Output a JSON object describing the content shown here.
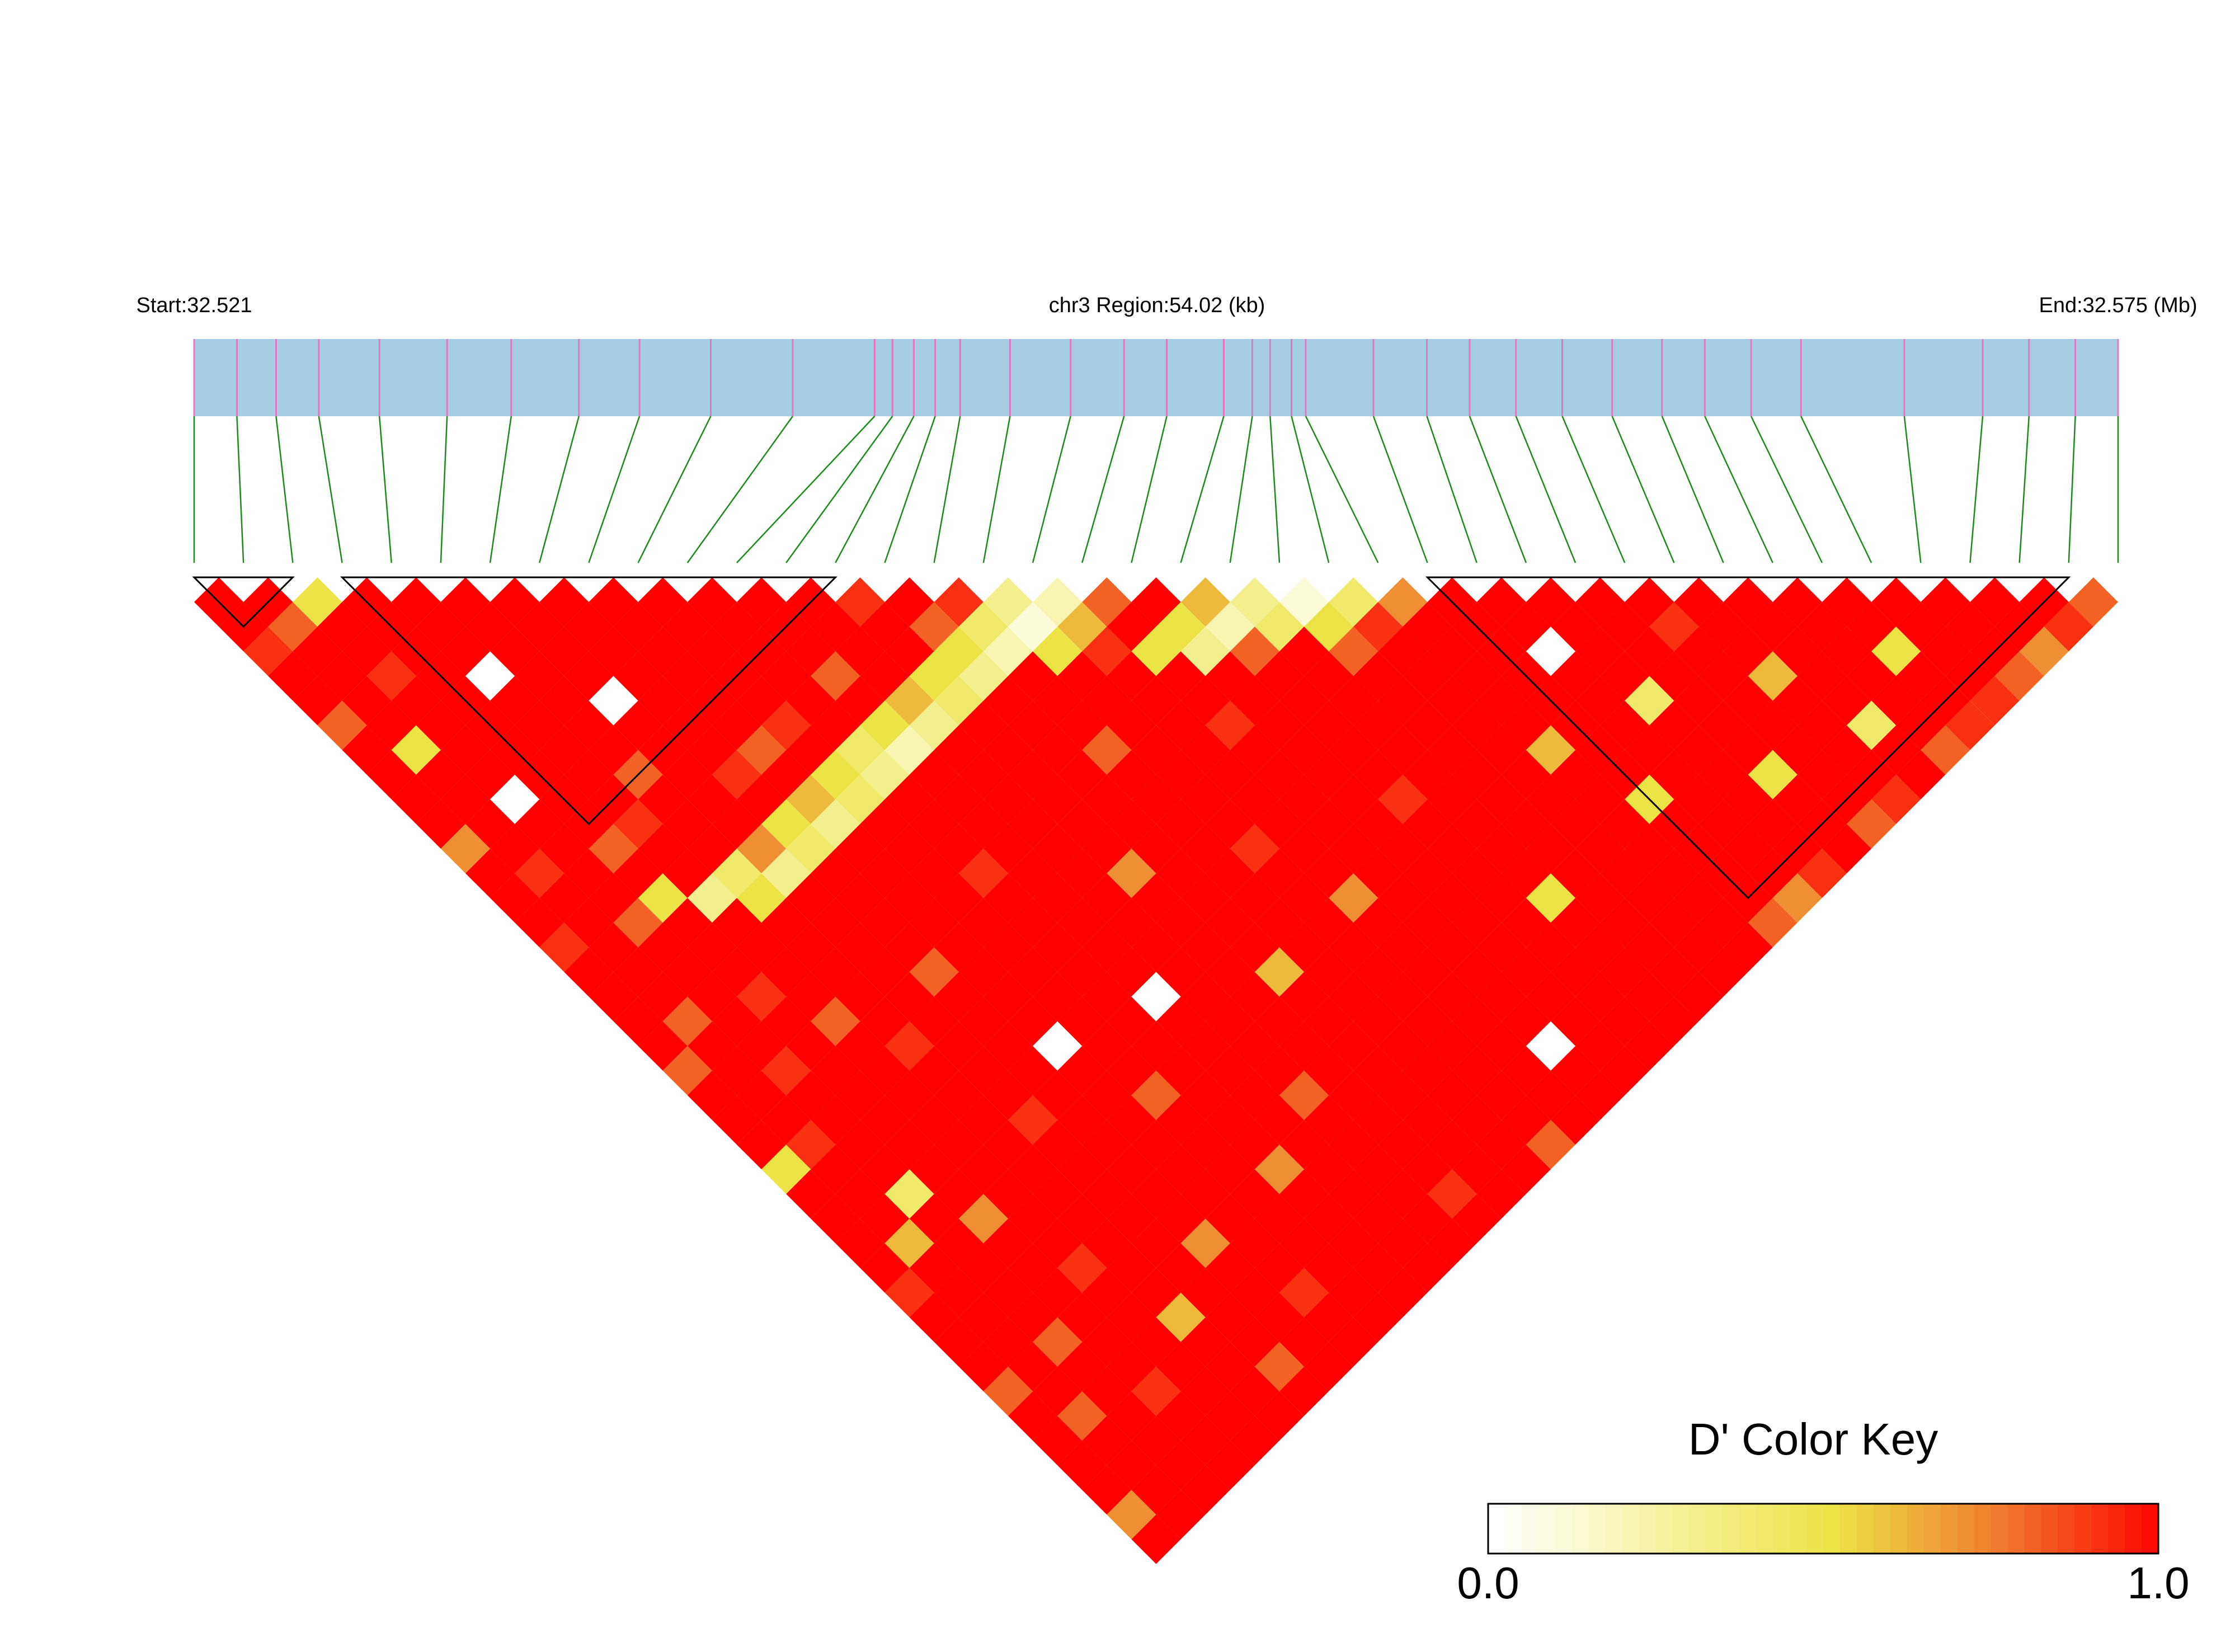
{
  "chart_data": {
    "type": "ld_heatmap",
    "start_label": "Start:32.521",
    "region_label": "chr3 Region:54.02 (kb)",
    "end_label": "End:32.575 (Mb)",
    "key_title": "D' Color Key",
    "xlim": [
      32.521,
      32.575
    ],
    "snp_positions": [
      32.521,
      32.5222,
      32.5233,
      32.5245,
      32.5262,
      32.5281,
      32.5299,
      32.5318,
      32.5335,
      32.5355,
      32.5378,
      32.5401,
      32.5406,
      32.5412,
      32.5418,
      32.5425,
      32.5439,
      32.5456,
      32.5471,
      32.5483,
      32.5499,
      32.5507,
      32.5512,
      32.5518,
      32.5522,
      32.5541,
      32.5556,
      32.5568,
      32.5581,
      32.5594,
      32.5608,
      32.5622,
      32.5634,
      32.5647,
      32.5661,
      32.569,
      32.5712,
      32.5725,
      32.5738,
      32.575
    ],
    "blocks": [
      [
        0,
        2
      ],
      [
        3,
        13
      ],
      [
        25,
        38
      ]
    ],
    "ld_matrix": [
      [
        1,
        1,
        0.9,
        1,
        1,
        0.8,
        1,
        1,
        1,
        1,
        0.7,
        1,
        1,
        1,
        0.9,
        1,
        1,
        1,
        1,
        0.8,
        1,
        1,
        1,
        0.5,
        1,
        1,
        1,
        1,
        0.9,
        1,
        1,
        1,
        0.8,
        1,
        1,
        1,
        1,
        0.7,
        1
      ],
      [
        1,
        0.8,
        1,
        1,
        1,
        1,
        0.5,
        1,
        1,
        1,
        1,
        0.9,
        1,
        1,
        1,
        1,
        1,
        0.8,
        1,
        1,
        1,
        1,
        0.9,
        1,
        1,
        1,
        0.6,
        1,
        1,
        1,
        1,
        1,
        1,
        0.8,
        1,
        1,
        1,
        1
      ],
      [
        0.5,
        1,
        1,
        0.9,
        1,
        1,
        1,
        1,
        0,
        1,
        1,
        1,
        1,
        0.8,
        1,
        1,
        1,
        1,
        1,
        0.9,
        1,
        1,
        1,
        1,
        0.4,
        1,
        1,
        1,
        1,
        1,
        0.8,
        1,
        1,
        1,
        1,
        1,
        1
      ],
      [
        1,
        1,
        1,
        1,
        1,
        1,
        1,
        1,
        1,
        1,
        0.8,
        1,
        0.5,
        1,
        1,
        1,
        0.9,
        1,
        1,
        1,
        1,
        1,
        1,
        1,
        1,
        0.7,
        1,
        1,
        1,
        1,
        1,
        1,
        0.9,
        1,
        1,
        1
      ],
      [
        1,
        1,
        1,
        0,
        1,
        1,
        1,
        1,
        1,
        0.9,
        1,
        1,
        0.3,
        1,
        1,
        1,
        1,
        0.8,
        1,
        1,
        1,
        1,
        1,
        1,
        1,
        1,
        1,
        0.9,
        1,
        1,
        1,
        1,
        1,
        1,
        1
      ],
      [
        1,
        1,
        1,
        1,
        1,
        1,
        1,
        0.8,
        1,
        1,
        1,
        0.4,
        0.5,
        1,
        1,
        1,
        1,
        1,
        0.9,
        1,
        1,
        1,
        1,
        1,
        1,
        1,
        1,
        1,
        1,
        0.6,
        1,
        1,
        1,
        1
      ],
      [
        1,
        1,
        1,
        1,
        0,
        1,
        1,
        1,
        1,
        1,
        0.7,
        0.3,
        1,
        1,
        1,
        1,
        1,
        1,
        1,
        1,
        1,
        0.9,
        1,
        1,
        1,
        1,
        1,
        1,
        1,
        1,
        1,
        0.8,
        1
      ],
      [
        1,
        1,
        1,
        1,
        1,
        1,
        1,
        0.9,
        1,
        0.5,
        0.4,
        1,
        1,
        1,
        1,
        0.8,
        1,
        1,
        1,
        1,
        1,
        1,
        1,
        1,
        1,
        1,
        0.7,
        1,
        1,
        1,
        1,
        1
      ],
      [
        1,
        1,
        1,
        1,
        1,
        1,
        0.8,
        1,
        0.6,
        0.3,
        1,
        1,
        1,
        1,
        1,
        1,
        1,
        1,
        0,
        1,
        1,
        1,
        1,
        1,
        1,
        1,
        1,
        1,
        0.9,
        1,
        1
      ],
      [
        1,
        1,
        1,
        1,
        1,
        0.9,
        1,
        0.5,
        0.4,
        1,
        1,
        1,
        1,
        1,
        1,
        1,
        1,
        1,
        1,
        1,
        0.8,
        1,
        1,
        1,
        1,
        1,
        1,
        1,
        1,
        1
      ],
      [
        1,
        1,
        1,
        1,
        1,
        1,
        0.4,
        0.3,
        1,
        1,
        1,
        0.9,
        1,
        1,
        1,
        1,
        1,
        1,
        1,
        1,
        1,
        1,
        1,
        0.7,
        1,
        1,
        1,
        1,
        1
      ],
      [
        1,
        1,
        1,
        0.8,
        1,
        0.5,
        0.2,
        1,
        1,
        1,
        1,
        1,
        1,
        1,
        1,
        1,
        0,
        1,
        1,
        1,
        1,
        1,
        1,
        1,
        1,
        1,
        1,
        1
      ],
      [
        1,
        1,
        1,
        1,
        0.6,
        0.3,
        1,
        1,
        1,
        1,
        1,
        1,
        1,
        1,
        1,
        1,
        1,
        1,
        1,
        1,
        0.8,
        1,
        1,
        1,
        1,
        1,
        1
      ],
      [
        0.9,
        1,
        1,
        0.5,
        0.4,
        1,
        1,
        1,
        1,
        1,
        1,
        0.7,
        1,
        1,
        1,
        1,
        1,
        1,
        1,
        1,
        1,
        1,
        1,
        1,
        0.9,
        1
      ],
      [
        1,
        0.8,
        0.5,
        0.3,
        1,
        1,
        1,
        1,
        1,
        1,
        1,
        1,
        1,
        1,
        1,
        0.6,
        1,
        1,
        1,
        1,
        1,
        1,
        1,
        1,
        1
      ],
      [
        0.9,
        0.4,
        0.2,
        1,
        1,
        1,
        0.8,
        1,
        1,
        1,
        1,
        1,
        1,
        1,
        1,
        1,
        1,
        1,
        1,
        1,
        1,
        1,
        1,
        1
      ],
      [
        0.3,
        0.1,
        0.5,
        1,
        1,
        1,
        1,
        1,
        1,
        1,
        0.9,
        1,
        1,
        1,
        1,
        1,
        1,
        1,
        1,
        1,
        1,
        1,
        0.8
      ],
      [
        0.2,
        0.6,
        0.9,
        1,
        1,
        1,
        1,
        1,
        1,
        1,
        1,
        1,
        0.7,
        1,
        1,
        1,
        1,
        1,
        1,
        1,
        1,
        1
      ],
      [
        0.8,
        1,
        0.5,
        1,
        1,
        0.9,
        1,
        1,
        1,
        1,
        1,
        1,
        1,
        1,
        1,
        1,
        1,
        1,
        0,
        1,
        1
      ],
      [
        1,
        0.5,
        0.3,
        1,
        1,
        1,
        1,
        1,
        1,
        1,
        1,
        1,
        1,
        1,
        1,
        1,
        1,
        1,
        1,
        1
      ],
      [
        0.6,
        0.2,
        0.8,
        1,
        1,
        1,
        1,
        1,
        0.9,
        1,
        1,
        1,
        1,
        1,
        1,
        1,
        1,
        1,
        1
      ],
      [
        0.3,
        0.4,
        1,
        1,
        1,
        1,
        1,
        1,
        1,
        1,
        1,
        1,
        0.5,
        1,
        1,
        1,
        1,
        1
      ],
      [
        0.1,
        0.5,
        0.8,
        1,
        1,
        1,
        1,
        1,
        1,
        1,
        1,
        1,
        1,
        1,
        1,
        1,
        1
      ],
      [
        0.4,
        0.9,
        1,
        1,
        1,
        1,
        1,
        1,
        1,
        1,
        1,
        1,
        1,
        1,
        1,
        1
      ],
      [
        0.7,
        1,
        1,
        1,
        1,
        1,
        0.6,
        1,
        1,
        1,
        1,
        1,
        1,
        1,
        1
      ],
      [
        1,
        1,
        1,
        1,
        1,
        1,
        1,
        1,
        0.5,
        1,
        1,
        1,
        1,
        0.8
      ],
      [
        1,
        1,
        0,
        1,
        1,
        1,
        1,
        1,
        1,
        1,
        1,
        1,
        0.7
      ],
      [
        1,
        1,
        1,
        1,
        0.4,
        1,
        1,
        1,
        1,
        1,
        1,
        0.9
      ],
      [
        1,
        1,
        1,
        1,
        1,
        1,
        1,
        0.5,
        1,
        1,
        1
      ],
      [
        1,
        0.9,
        1,
        1,
        1,
        1,
        1,
        1,
        1,
        0.8
      ],
      [
        1,
        1,
        1,
        0.6,
        1,
        1,
        1,
        1,
        0.9
      ],
      [
        1,
        1,
        1,
        1,
        1,
        0.4,
        1,
        1
      ],
      [
        1,
        1,
        1,
        1,
        1,
        1,
        0.8
      ],
      [
        1,
        1,
        0.5,
        1,
        1,
        0.9
      ],
      [
        1,
        1,
        1,
        1,
        0.9
      ],
      [
        1,
        1,
        1,
        0.8
      ],
      [
        1,
        1,
        0.7
      ],
      [
        1,
        0.9
      ],
      [
        0.8
      ]
    ],
    "colorscale": [
      "#ffffff",
      "#f6f2a0",
      "#ece446",
      "#f07a2e",
      "#ff0000"
    ],
    "key_lim": [
      0,
      1
    ],
    "key_ticks": [
      {
        "value": 0,
        "label": "0.0"
      },
      {
        "value": 1,
        "label": "1.0"
      }
    ],
    "bar_color": "#a6cee3",
    "snp_tick_color": "#e377c2",
    "link_color": "#1a8a1a",
    "block_color": "#000000"
  }
}
